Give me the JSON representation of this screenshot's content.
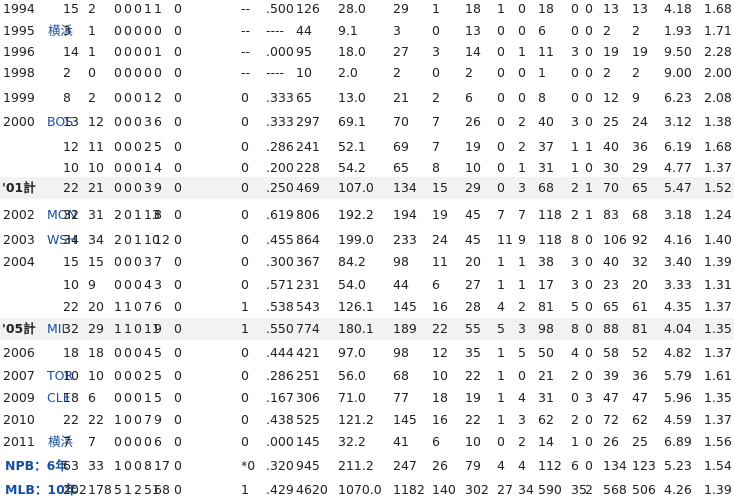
{
  "columns": [
    "year",
    "team",
    "g",
    "gs",
    "cg",
    "sho",
    "w",
    "l",
    "sv",
    "hld",
    "hp",
    "pct",
    "bf",
    "ip",
    "h",
    "hr",
    "bb",
    "ibb",
    "hbp",
    "so",
    "wp",
    "bk",
    "r",
    "er",
    "era",
    "whip"
  ],
  "rows": [
    {
      "year": "1994",
      "team": "",
      "g": "15",
      "gs": "2",
      "cg": "0",
      "sho": "0",
      "w": "0",
      "l": "1",
      "sv": "1",
      "hld": "0",
      "hp": "--",
      "pct": ".500",
      "bf": "126",
      "ip": "28.0",
      "h": "29",
      "hr": "1",
      "bb": "18",
      "ibb": "1",
      "hbp": "0",
      "so": "18",
      "wp": "0",
      "bk": "0",
      "r": "13",
      "er": "13",
      "era": "4.18",
      "whip": "1.68"
    },
    {
      "year": "1995",
      "team": "横浜",
      "g": "3",
      "gs": "1",
      "cg": "0",
      "sho": "0",
      "w": "0",
      "l": "0",
      "sv": "0",
      "hld": "0",
      "hp": "--",
      "pct": "----",
      "bf": "44",
      "ip": "9.1",
      "h": "3",
      "hr": "0",
      "bb": "13",
      "ibb": "0",
      "hbp": "0",
      "so": "6",
      "wp": "0",
      "bk": "0",
      "r": "2",
      "er": "2",
      "era": "1.93",
      "whip": "1.71"
    },
    {
      "year": "1996",
      "team": "",
      "g": "14",
      "gs": "1",
      "cg": "0",
      "sho": "0",
      "w": "0",
      "l": "0",
      "sv": "1",
      "hld": "0",
      "hp": "--",
      "pct": ".000",
      "bf": "95",
      "ip": "18.0",
      "h": "27",
      "hr": "3",
      "bb": "14",
      "ibb": "0",
      "hbp": "1",
      "so": "11",
      "wp": "3",
      "bk": "0",
      "r": "19",
      "er": "19",
      "era": "9.50",
      "whip": "2.28"
    },
    {
      "year": "1998",
      "team": "",
      "g": "2",
      "gs": "0",
      "cg": "0",
      "sho": "0",
      "w": "0",
      "l": "0",
      "sv": "0",
      "hld": "0",
      "hp": "--",
      "pct": "----",
      "bf": "10",
      "ip": "2.0",
      "h": "2",
      "hr": "0",
      "bb": "2",
      "ibb": "0",
      "hbp": "0",
      "so": "1",
      "wp": "0",
      "bk": "0",
      "r": "2",
      "er": "2",
      "era": "9.00",
      "whip": "2.00"
    },
    {
      "year": "1999",
      "team": "",
      "g": "8",
      "gs": "2",
      "cg": "0",
      "sho": "0",
      "w": "0",
      "l": "1",
      "sv": "2",
      "hld": "0",
      "hp": "0",
      "pct": ".333",
      "bf": "65",
      "ip": "13.0",
      "h": "21",
      "hr": "2",
      "bb": "6",
      "ibb": "0",
      "hbp": "0",
      "so": "8",
      "wp": "0",
      "bk": "0",
      "r": "12",
      "er": "9",
      "era": "6.23",
      "whip": "2.08"
    },
    {
      "year": "2000",
      "team": "BOS",
      "g": "13",
      "gs": "12",
      "cg": "0",
      "sho": "0",
      "w": "0",
      "l": "3",
      "sv": "6",
      "hld": "0",
      "hp": "0",
      "pct": ".333",
      "bf": "297",
      "ip": "69.1",
      "h": "70",
      "hr": "7",
      "bb": "26",
      "ibb": "0",
      "hbp": "2",
      "so": "40",
      "wp": "3",
      "bk": "0",
      "r": "25",
      "er": "24",
      "era": "3.12",
      "whip": "1.38"
    },
    {
      "year": "",
      "team": "",
      "g": "12",
      "gs": "11",
      "cg": "0",
      "sho": "0",
      "w": "0",
      "l": "2",
      "sv": "5",
      "hld": "0",
      "hp": "0",
      "pct": ".286",
      "bf": "241",
      "ip": "52.1",
      "h": "69",
      "hr": "7",
      "bb": "19",
      "ibb": "0",
      "hbp": "2",
      "so": "37",
      "wp": "1",
      "bk": "1",
      "r": "40",
      "er": "36",
      "era": "6.19",
      "whip": "1.68"
    },
    {
      "year": "",
      "team": "",
      "g": "10",
      "gs": "10",
      "cg": "0",
      "sho": "0",
      "w": "0",
      "l": "1",
      "sv": "4",
      "hld": "0",
      "hp": "0",
      "pct": ".200",
      "bf": "228",
      "ip": "54.2",
      "h": "65",
      "hr": "8",
      "bb": "10",
      "ibb": "0",
      "hbp": "1",
      "so": "31",
      "wp": "1",
      "bk": "0",
      "r": "30",
      "er": "29",
      "era": "4.77",
      "whip": "1.37"
    },
    {
      "year": "'01計",
      "team": "",
      "g": "22",
      "gs": "21",
      "cg": "0",
      "sho": "0",
      "w": "0",
      "l": "3",
      "sv": "9",
      "hld": "0",
      "hp": "0",
      "pct": ".250",
      "bf": "469",
      "ip": "107.0",
      "h": "134",
      "hr": "15",
      "bb": "29",
      "ibb": "0",
      "hbp": "3",
      "so": "68",
      "wp": "2",
      "bk": "1",
      "r": "70",
      "er": "65",
      "era": "5.47",
      "whip": "1.52"
    },
    {
      "year": "2002",
      "team": "MON",
      "g": "32",
      "gs": "31",
      "cg": "2",
      "sho": "0",
      "w": "1",
      "l": "13",
      "sv": "8",
      "hld": "0",
      "hp": "0",
      "pct": ".619",
      "bf": "806",
      "ip": "192.2",
      "h": "194",
      "hr": "19",
      "bb": "45",
      "ibb": "7",
      "hbp": "7",
      "so": "118",
      "wp": "2",
      "bk": "1",
      "r": "83",
      "er": "68",
      "era": "3.18",
      "whip": "1.24"
    },
    {
      "year": "2003",
      "team": "WSH",
      "g": "34",
      "gs": "34",
      "cg": "2",
      "sho": "0",
      "w": "1",
      "l": "10",
      "sv": "12",
      "hld": "0",
      "hp": "0",
      "pct": ".455",
      "bf": "864",
      "ip": "199.0",
      "h": "233",
      "hr": "24",
      "bb": "45",
      "ibb": "11",
      "hbp": "9",
      "so": "118",
      "wp": "8",
      "bk": "0",
      "r": "106",
      "er": "92",
      "era": "4.16",
      "whip": "1.40"
    },
    {
      "year": "2004",
      "team": "",
      "g": "15",
      "gs": "15",
      "cg": "0",
      "sho": "0",
      "w": "0",
      "l": "3",
      "sv": "7",
      "hld": "0",
      "hp": "0",
      "pct": ".300",
      "bf": "367",
      "ip": "84.2",
      "h": "98",
      "hr": "11",
      "bb": "20",
      "ibb": "1",
      "hbp": "1",
      "so": "38",
      "wp": "3",
      "bk": "0",
      "r": "40",
      "er": "32",
      "era": "3.40",
      "whip": "1.39"
    },
    {
      "year": "",
      "team": "",
      "g": "10",
      "gs": "9",
      "cg": "0",
      "sho": "0",
      "w": "0",
      "l": "4",
      "sv": "3",
      "hld": "0",
      "hp": "0",
      "pct": ".571",
      "bf": "231",
      "ip": "54.0",
      "h": "44",
      "hr": "6",
      "bb": "27",
      "ibb": "1",
      "hbp": "1",
      "so": "17",
      "wp": "3",
      "bk": "0",
      "r": "23",
      "er": "20",
      "era": "3.33",
      "whip": "1.31"
    },
    {
      "year": "",
      "team": "",
      "g": "22",
      "gs": "20",
      "cg": "1",
      "sho": "1",
      "w": "0",
      "l": "7",
      "sv": "6",
      "hld": "0",
      "hp": "1",
      "pct": ".538",
      "bf": "543",
      "ip": "126.1",
      "h": "145",
      "hr": "16",
      "bb": "28",
      "ibb": "4",
      "hbp": "2",
      "so": "81",
      "wp": "5",
      "bk": "0",
      "r": "65",
      "er": "61",
      "era": "4.35",
      "whip": "1.37"
    },
    {
      "year": "'05計",
      "team": "MIL",
      "g": "32",
      "gs": "29",
      "cg": "1",
      "sho": "1",
      "w": "0",
      "l": "11",
      "sv": "9",
      "hld": "0",
      "hp": "1",
      "pct": ".550",
      "bf": "774",
      "ip": "180.1",
      "h": "189",
      "hr": "22",
      "bb": "55",
      "ibb": "5",
      "hbp": "3",
      "so": "98",
      "wp": "8",
      "bk": "0",
      "r": "88",
      "er": "81",
      "era": "4.04",
      "whip": "1.35"
    },
    {
      "year": "2006",
      "team": "",
      "g": "18",
      "gs": "18",
      "cg": "0",
      "sho": "0",
      "w": "0",
      "l": "4",
      "sv": "5",
      "hld": "0",
      "hp": "0",
      "pct": ".444",
      "bf": "421",
      "ip": "97.0",
      "h": "98",
      "hr": "12",
      "bb": "35",
      "ibb": "1",
      "hbp": "5",
      "so": "50",
      "wp": "4",
      "bk": "0",
      "r": "58",
      "er": "52",
      "era": "4.82",
      "whip": "1.37"
    },
    {
      "year": "2007",
      "team": "TOR",
      "g": "10",
      "gs": "10",
      "cg": "0",
      "sho": "0",
      "w": "0",
      "l": "2",
      "sv": "5",
      "hld": "0",
      "hp": "0",
      "pct": ".286",
      "bf": "251",
      "ip": "56.0",
      "h": "68",
      "hr": "10",
      "bb": "22",
      "ibb": "1",
      "hbp": "0",
      "so": "21",
      "wp": "2",
      "bk": "0",
      "r": "39",
      "er": "36",
      "era": "5.79",
      "whip": "1.61"
    },
    {
      "year": "2009",
      "team": "CLE",
      "g": "18",
      "gs": "6",
      "cg": "0",
      "sho": "0",
      "w": "0",
      "l": "1",
      "sv": "5",
      "hld": "0",
      "hp": "0",
      "pct": ".167",
      "bf": "306",
      "ip": "71.0",
      "h": "77",
      "hr": "18",
      "bb": "19",
      "ibb": "1",
      "hbp": "4",
      "so": "31",
      "wp": "0",
      "bk": "3",
      "r": "47",
      "er": "47",
      "era": "5.96",
      "whip": "1.35"
    },
    {
      "year": "2010",
      "team": "",
      "g": "22",
      "gs": "22",
      "cg": "1",
      "sho": "0",
      "w": "0",
      "l": "7",
      "sv": "9",
      "hld": "0",
      "hp": "0",
      "pct": ".438",
      "bf": "525",
      "ip": "121.2",
      "h": "145",
      "hr": "16",
      "bb": "22",
      "ibb": "1",
      "hbp": "3",
      "so": "62",
      "wp": "2",
      "bk": "0",
      "r": "72",
      "er": "62",
      "era": "4.59",
      "whip": "1.37"
    },
    {
      "year": "2011",
      "team": "横浜",
      "g": "7",
      "gs": "7",
      "cg": "0",
      "sho": "0",
      "w": "0",
      "l": "0",
      "sv": "6",
      "hld": "0",
      "hp": "0",
      "pct": ".000",
      "bf": "145",
      "ip": "32.2",
      "h": "41",
      "hr": "6",
      "bb": "10",
      "ibb": "0",
      "hbp": "2",
      "so": "14",
      "wp": "1",
      "bk": "0",
      "r": "26",
      "er": "25",
      "era": "6.89",
      "whip": "1.56"
    },
    {
      "year": "NPB：6年",
      "team": "",
      "g": "63",
      "gs": "33",
      "cg": "1",
      "sho": "0",
      "w": "0",
      "l": "8",
      "sv": "17",
      "hld": "0",
      "hp": "*0",
      "pct": ".320",
      "bf": "945",
      "ip": "211.2",
      "h": "247",
      "hr": "26",
      "bb": "79",
      "ibb": "4",
      "hbp": "4",
      "so": "112",
      "wp": "6",
      "bk": "0",
      "r": "134",
      "er": "123",
      "era": "5.23",
      "whip": "1.54"
    },
    {
      "year": "MLB：10年",
      "team": "",
      "g": "202",
      "gs": "178",
      "cg": "5",
      "sho": "1",
      "w": "2",
      "l": "51",
      "sv": "68",
      "hld": "0",
      "hp": "1",
      "pct": ".429",
      "bf": "4620",
      "ip": "1070.0",
      "h": "1182",
      "hr": "140",
      "bb": "302",
      "ibb": "27",
      "hbp": "34",
      "so": "590",
      "wp": "35",
      "bk": "2",
      "r": "568",
      "er": "506",
      "era": "4.26",
      "whip": "1.39"
    }
  ],
  "styles": {
    "link_color": "#1a4fa0",
    "highlight_bg": "#f2f2f2"
  }
}
